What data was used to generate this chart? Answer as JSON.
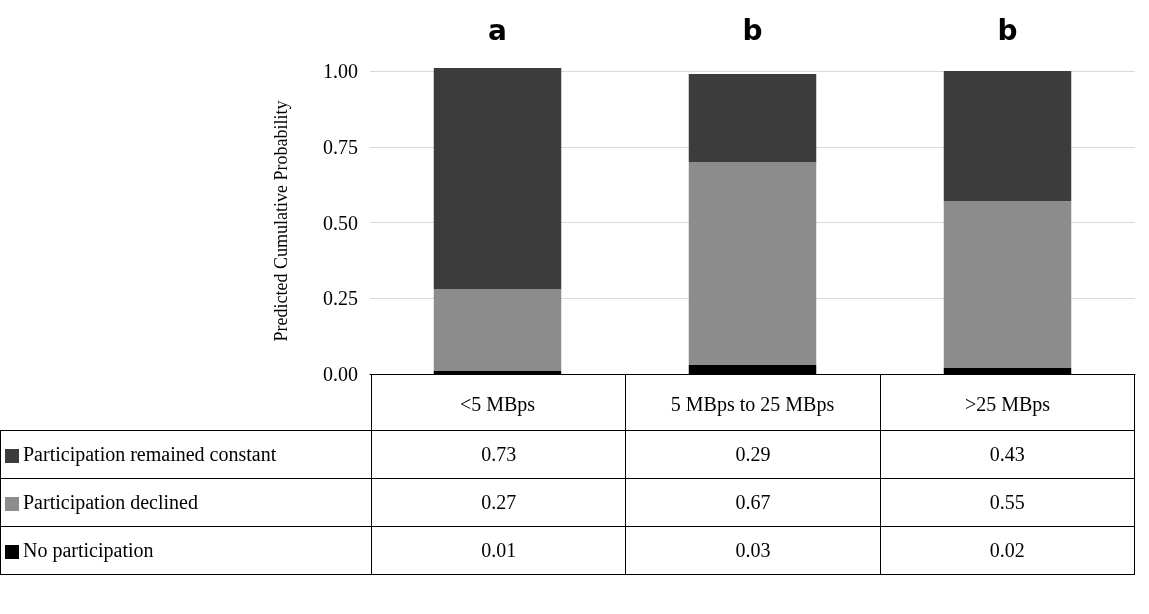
{
  "chart_data": {
    "type": "bar",
    "stacked": true,
    "ylabel": "Predicted Cumulative Probability",
    "categories": [
      "<5 MBps",
      "5 MBps to 25 MBps",
      ">25 MBps"
    ],
    "series": [
      {
        "name": "No participation",
        "color": "#000000",
        "values": [
          0.01,
          0.03,
          0.02
        ]
      },
      {
        "name": "Participation declined",
        "color": "#8c8c8c",
        "values": [
          0.27,
          0.67,
          0.55
        ]
      },
      {
        "name": "Participation remained constant",
        "color": "#3c3c3c",
        "values": [
          0.73,
          0.29,
          0.43
        ]
      }
    ],
    "ylim": [
      0,
      1.01
    ],
    "yticks": [
      {
        "value": 0,
        "label": "0.00"
      },
      {
        "value": 0.25,
        "label": "0.25"
      },
      {
        "value": 0.5,
        "label": "0.50"
      },
      {
        "value": 0.75,
        "label": "0.75"
      },
      {
        "value": 1,
        "label": "1.00"
      }
    ],
    "grid": "y",
    "legend": "bottom",
    "data_labels": true,
    "annotations": [
      "a",
      "b",
      "b"
    ]
  }
}
